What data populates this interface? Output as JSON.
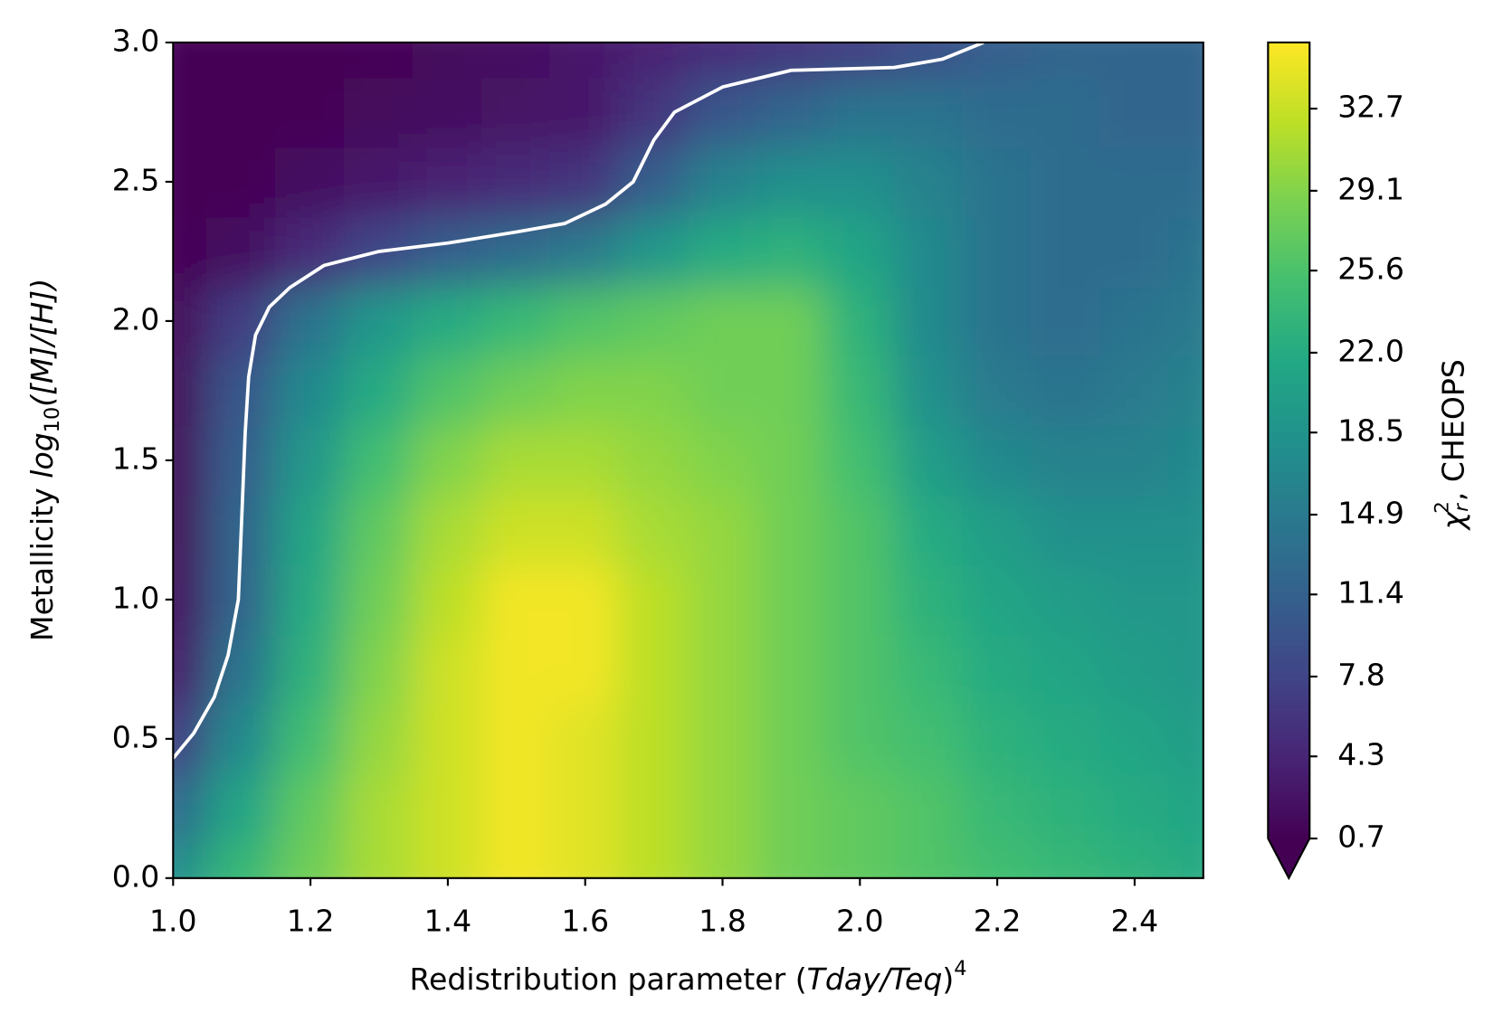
{
  "chart_data": {
    "type": "contour",
    "colormap": "viridis",
    "x": [
      1.0,
      1.1,
      1.2,
      1.3,
      1.4,
      1.5,
      1.6,
      1.7,
      1.8,
      1.9,
      2.0,
      2.1,
      2.2,
      2.3,
      2.4,
      2.5
    ],
    "y": [
      0,
      0.25,
      0.5,
      0.75,
      1.0,
      1.25,
      1.5,
      1.75,
      2.0,
      2.25,
      2.5,
      2.75,
      3.0
    ],
    "z": [
      [
        18,
        24,
        28,
        31,
        33,
        35,
        34,
        32,
        30,
        28,
        27,
        26,
        25,
        24,
        23,
        22
      ],
      [
        13,
        21,
        27,
        31,
        33,
        35,
        34,
        32,
        30,
        28,
        27,
        26,
        24,
        23,
        22,
        21
      ],
      [
        7,
        17,
        25,
        30,
        33,
        35,
        34,
        32,
        30,
        28,
        26,
        25,
        23,
        22,
        21,
        20
      ],
      [
        3,
        14,
        23,
        29,
        33,
        35,
        35,
        32,
        30,
        28,
        26,
        24,
        22,
        21,
        20,
        19
      ],
      [
        2,
        12,
        22,
        28,
        32,
        35,
        35,
        32,
        30,
        28,
        26,
        23,
        21,
        20,
        19,
        19
      ],
      [
        1.5,
        12,
        21,
        27,
        31,
        33,
        33,
        31,
        30,
        28,
        26,
        22,
        20,
        18,
        18,
        18
      ],
      [
        1.5,
        11,
        19,
        25,
        29,
        31,
        31,
        30,
        29,
        28,
        25,
        20,
        17,
        16,
        16,
        17
      ],
      [
        1.5,
        10,
        17,
        22,
        26,
        28,
        29,
        29,
        28,
        28,
        24,
        18,
        15,
        14,
        15,
        16
      ],
      [
        1.5,
        7,
        14,
        19,
        22,
        24,
        26,
        27,
        28,
        28,
        23,
        17,
        14,
        13,
        14,
        15
      ],
      [
        1,
        2,
        5,
        8,
        11,
        13,
        15,
        19,
        22,
        23,
        21,
        17,
        14,
        13,
        13,
        14
      ],
      [
        0.8,
        1,
        2,
        3,
        4,
        5,
        6,
        11,
        16,
        18,
        18,
        16,
        14,
        13,
        13,
        13
      ],
      [
        0.7,
        0.8,
        1,
        1.5,
        2,
        2.5,
        3,
        6,
        10,
        12,
        14,
        14,
        13,
        13,
        12,
        12
      ],
      [
        0.7,
        0.7,
        0.8,
        1,
        1.5,
        2,
        3,
        4,
        5,
        6,
        7,
        9,
        11,
        12,
        12,
        12
      ]
    ],
    "xlim": [
      1.0,
      2.5
    ],
    "ylim": [
      0,
      3.0
    ],
    "xticks": [
      {
        "value": 1,
        "label": "1.0"
      },
      1.2,
      1.4,
      1.6,
      1.8,
      {
        "value": 2,
        "label": "2.0"
      },
      2.2,
      2.4
    ],
    "yticks": [
      {
        "value": 0,
        "label": "0.0"
      },
      0.5,
      {
        "value": 1,
        "label": "1.0"
      },
      1.5,
      {
        "value": 2,
        "label": "2.0"
      },
      2.5,
      {
        "value": 3,
        "label": "3.0"
      }
    ],
    "xlabel": [
      "Redistribution parameter (",
      "Tday/Teq",
      ")",
      "4"
    ],
    "ylabel": [
      "Metallicity ",
      "log",
      "10",
      "([M]/[H])"
    ],
    "clim": [
      0.7,
      35.6
    ],
    "cticks": [
      0.7,
      4.3,
      7.8,
      11.4,
      14.9,
      18.5,
      {
        "value": 22,
        "label": "22.0"
      },
      25.6,
      29.1,
      32.7
    ],
    "colorbar_label": [
      "χ",
      "r",
      "2",
      ", CHEOPS"
    ],
    "contour_line": {
      "color": "#ffffff",
      "x": [
        1.0,
        1.03,
        1.06,
        1.08,
        1.095,
        1.1,
        1.105,
        1.11,
        1.12,
        1.14,
        1.17,
        1.22,
        1.3,
        1.4,
        1.5,
        1.57,
        1.63,
        1.67,
        1.7,
        1.73,
        1.8,
        1.9,
        2.05,
        2.12,
        2.18
      ],
      "y": [
        0.43,
        0.52,
        0.65,
        0.8,
        1.0,
        1.3,
        1.6,
        1.8,
        1.95,
        2.05,
        2.12,
        2.2,
        2.25,
        2.28,
        2.32,
        2.35,
        2.42,
        2.5,
        2.65,
        2.75,
        2.84,
        2.9,
        2.91,
        2.94,
        3.0
      ]
    }
  }
}
